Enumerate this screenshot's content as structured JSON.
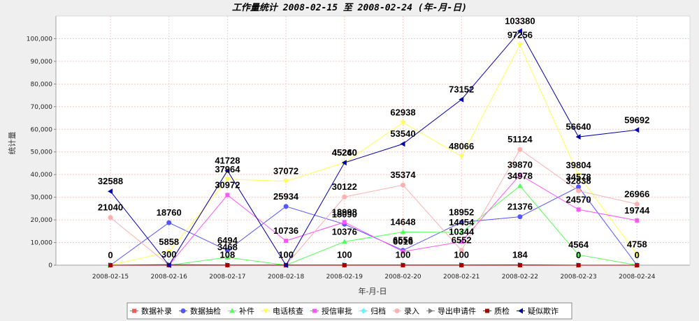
{
  "chart_data": {
    "type": "line",
    "title": "工作量统计 2008-02-15 至 2008-02-24 (年-月-日)",
    "xlabel": "年-月-日",
    "ylabel": "统计量",
    "ylim": [
      0,
      110000
    ],
    "yticks": [
      0,
      10000,
      20000,
      30000,
      40000,
      50000,
      60000,
      70000,
      80000,
      90000,
      100000
    ],
    "ytick_labels": [
      "0",
      "10,000",
      "20,000",
      "30,000",
      "40,000",
      "50,000",
      "60,000",
      "70,000",
      "80,000",
      "90,000",
      "100,000"
    ],
    "grid": true,
    "legend_position": "bottom",
    "categories": [
      "2008-02-15",
      "2008-02-16",
      "2008-02-17",
      "2008-02-18",
      "2008-02-19",
      "2008-02-20",
      "2008-02-21",
      "2008-02-22",
      "2008-02-23",
      "2008-02-24"
    ],
    "series": [
      {
        "name": "数据补录",
        "color": "#ff5555",
        "marker": "square",
        "values": [
          0,
          0,
          0,
          0,
          0,
          0,
          0,
          0,
          0,
          0
        ]
      },
      {
        "name": "数据抽检",
        "color": "#5555ff",
        "marker": "circle",
        "values": [
          0,
          18760,
          6494,
          25934,
          18090,
          6556,
          18952,
          21376,
          34578,
          0
        ]
      },
      {
        "name": "补件",
        "color": "#55ff55",
        "marker": "triangle-up",
        "values": [
          0,
          0,
          3468,
          0,
          10376,
          14648,
          14454,
          34978,
          4564,
          0
        ]
      },
      {
        "name": "电话核查",
        "color": "#ffff55",
        "marker": "triangle-down",
        "values": [
          0,
          5858,
          37964,
          37072,
          45260,
          62938,
          48066,
          97256,
          39804,
          4758
        ]
      },
      {
        "name": "授信审批",
        "color": "#ff55ff",
        "marker": "square",
        "values": [
          0,
          0,
          30972,
          10736,
          18998,
          6016,
          10344,
          39870,
          24570,
          19744
        ]
      },
      {
        "name": "归档",
        "color": "#55ffff",
        "marker": "diamond",
        "values": [
          0,
          0,
          0,
          0,
          0,
          0,
          0,
          0,
          0,
          0
        ]
      },
      {
        "name": "录入",
        "color": "#ffb0b0",
        "marker": "circle",
        "values": [
          21040,
          0,
          41728,
          0,
          30122,
          35374,
          6552,
          51124,
          32838,
          26966
        ]
      },
      {
        "name": "导出申请件",
        "color": "#808080",
        "marker": "triangle-right",
        "values": [
          0,
          300,
          108,
          100,
          100,
          100,
          100,
          184,
          0,
          0
        ]
      },
      {
        "name": "质检",
        "color": "#aa0000",
        "marker": "square",
        "values": [
          0,
          0,
          0,
          0,
          0,
          0,
          0,
          0,
          0,
          0
        ]
      },
      {
        "name": "疑似欺诈",
        "color": "#0000aa",
        "marker": "triangle-left",
        "values": [
          32588,
          0,
          41728,
          0,
          45240,
          53540,
          73152,
          103380,
          56640,
          59692
        ]
      }
    ],
    "data_labels": [
      {
        "series": "疑似欺诈",
        "category": "2008-02-15",
        "text": "32588"
      },
      {
        "series": "录入",
        "category": "2008-02-15",
        "text": "21040"
      },
      {
        "series": "数据补录",
        "category": "2008-02-15",
        "text": "0"
      },
      {
        "series": "数据抽检",
        "category": "2008-02-16",
        "text": "18760"
      },
      {
        "series": "电话核查",
        "category": "2008-02-16",
        "text": "5858"
      },
      {
        "series": "导出申请件",
        "category": "2008-02-16",
        "text": "300"
      },
      {
        "series": "疑似欺诈",
        "category": "2008-02-17",
        "text": "41728"
      },
      {
        "series": "电话核查",
        "category": "2008-02-17",
        "text": "37964"
      },
      {
        "series": "授信审批",
        "category": "2008-02-17",
        "text": "30972"
      },
      {
        "series": "数据抽检",
        "category": "2008-02-17",
        "text": "6494"
      },
      {
        "series": "补件",
        "category": "2008-02-17",
        "text": "3468"
      },
      {
        "series": "导出申请件",
        "category": "2008-02-17",
        "text": "108"
      },
      {
        "series": "电话核查",
        "category": "2008-02-18",
        "text": "37072"
      },
      {
        "series": "数据抽检",
        "category": "2008-02-18",
        "text": "25934"
      },
      {
        "series": "授信审批",
        "category": "2008-02-18",
        "text": "10736"
      },
      {
        "series": "导出申请件",
        "category": "2008-02-18",
        "text": "100"
      },
      {
        "series": "疑似欺诈",
        "category": "2008-02-19",
        "text": "45240"
      },
      {
        "series": "电话核查",
        "category": "2008-02-19",
        "text": "45260"
      },
      {
        "series": "录入",
        "category": "2008-02-19",
        "text": "30122"
      },
      {
        "series": "授信审批",
        "category": "2008-02-19",
        "text": "18998"
      },
      {
        "series": "数据抽检",
        "category": "2008-02-19",
        "text": "18090"
      },
      {
        "series": "补件",
        "category": "2008-02-19",
        "text": "10376"
      },
      {
        "series": "导出申请件",
        "category": "2008-02-19",
        "text": "100"
      },
      {
        "series": "电话核查",
        "category": "2008-02-20",
        "text": "62938"
      },
      {
        "series": "疑似欺诈",
        "category": "2008-02-20",
        "text": "53540"
      },
      {
        "series": "录入",
        "category": "2008-02-20",
        "text": "35374"
      },
      {
        "series": "补件",
        "category": "2008-02-20",
        "text": "14648"
      },
      {
        "series": "数据抽检",
        "category": "2008-02-20",
        "text": "6556"
      },
      {
        "series": "授信审批",
        "category": "2008-02-20",
        "text": "6016"
      },
      {
        "series": "导出申请件",
        "category": "2008-02-20",
        "text": "100"
      },
      {
        "series": "疑似欺诈",
        "category": "2008-02-21",
        "text": "73152"
      },
      {
        "series": "电话核查",
        "category": "2008-02-21",
        "text": "48066"
      },
      {
        "series": "数据抽检",
        "category": "2008-02-21",
        "text": "18952"
      },
      {
        "series": "补件",
        "category": "2008-02-21",
        "text": "14454"
      },
      {
        "series": "授信审批",
        "category": "2008-02-21",
        "text": "10344"
      },
      {
        "series": "录入",
        "category": "2008-02-21",
        "text": "6552"
      },
      {
        "series": "导出申请件",
        "category": "2008-02-21",
        "text": "100"
      },
      {
        "series": "疑似欺诈",
        "category": "2008-02-22",
        "text": "103380"
      },
      {
        "series": "电话核查",
        "category": "2008-02-22",
        "text": "97256"
      },
      {
        "series": "录入",
        "category": "2008-02-22",
        "text": "51124"
      },
      {
        "series": "授信审批",
        "category": "2008-02-22",
        "text": "39870"
      },
      {
        "series": "补件",
        "category": "2008-02-22",
        "text": "34978"
      },
      {
        "series": "数据抽检",
        "category": "2008-02-22",
        "text": "21376"
      },
      {
        "series": "导出申请件",
        "category": "2008-02-22",
        "text": "184"
      },
      {
        "series": "疑似欺诈",
        "category": "2008-02-23",
        "text": "56640"
      },
      {
        "series": "电话核查",
        "category": "2008-02-23",
        "text": "39804"
      },
      {
        "series": "数据抽检",
        "category": "2008-02-23",
        "text": "34578"
      },
      {
        "series": "录入",
        "category": "2008-02-23",
        "text": "32838"
      },
      {
        "series": "授信审批",
        "category": "2008-02-23",
        "text": "24570"
      },
      {
        "series": "补件",
        "category": "2008-02-23",
        "text": "4564"
      },
      {
        "series": "数据补录",
        "category": "2008-02-23",
        "text": "0"
      },
      {
        "series": "疑似欺诈",
        "category": "2008-02-24",
        "text": "59692"
      },
      {
        "series": "录入",
        "category": "2008-02-24",
        "text": "26966"
      },
      {
        "series": "授信审批",
        "category": "2008-02-24",
        "text": "19744"
      },
      {
        "series": "电话核查",
        "category": "2008-02-24",
        "text": "4758"
      },
      {
        "series": "数据补录",
        "category": "2008-02-24",
        "text": "0"
      }
    ]
  }
}
